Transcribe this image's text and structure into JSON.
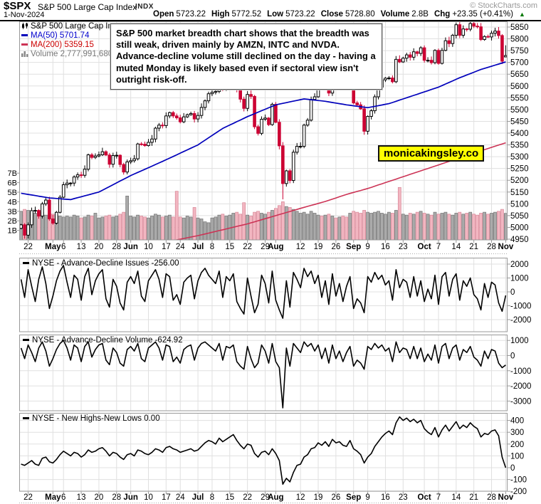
{
  "header": {
    "symbol": "$SPX",
    "title": "S&P 500 Large Cap Index",
    "exchange": "INDX",
    "source": "© StockCharts.com",
    "date": "1-Nov-2024",
    "quote": [
      {
        "label": "Open",
        "value": "5723.22"
      },
      {
        "label": "High",
        "value": "5772.52"
      },
      {
        "label": "Low",
        "value": "5723.22"
      },
      {
        "label": "Close",
        "value": "5728.80"
      },
      {
        "label": "Volume",
        "value": "2.8B"
      },
      {
        "label": "Chg",
        "value": "+23.35 (+0.41%)"
      }
    ],
    "change_direction_icon": "▲",
    "change_color": "#007700"
  },
  "annotation": {
    "text": "S&P 500 market breadth chart shows that the breadth was still weak, driven mainly by AMZN, INTC and NVDA. Advance-decline volume still declined on the day - having a muted Monday is likely based even if sectoral view isn't outright risk-off."
  },
  "brand": {
    "text": "monicakingsley.co",
    "bg": "#ffff00"
  },
  "main_legend": {
    "title": "S&P 500 Large Cap In",
    "ma50": {
      "label": "MA(50)",
      "value": "5701.74",
      "color": "#0000cc"
    },
    "ma200": {
      "label": "MA(200)",
      "value": "5359.15",
      "color": "#cc0000"
    },
    "volume": {
      "label": "Volume",
      "value": "2,777,991,680",
      "color": "#777777"
    }
  },
  "colors": {
    "candle_down": "#cc0033",
    "candle_up_fill": "#ffffff",
    "candle_up_stroke": "#000000",
    "vol_up_fill": "#aaaaaa",
    "vol_up_stroke": "#777777",
    "vol_down_fill": "#f2b6c1",
    "vol_down_stroke": "#d98a9a",
    "ma50_line": "#0000bb",
    "ma200_line": "#cc3355",
    "panel_line": "#000000",
    "grid": "#e0e0e0",
    "border": "#999999"
  },
  "chart_data": {
    "type": "candlestick",
    "title": "S&P 500 Large Cap Index daily with volume and NYSE breadth panels",
    "price_axis": {
      "min": 4950,
      "max": 5850,
      "step": 50
    },
    "volume_axis_labels": [
      "7B",
      "6B",
      "5B",
      "4B",
      "3B",
      "2B",
      "1B"
    ],
    "x_ticks": [
      {
        "label": "22",
        "idx": 2
      },
      {
        "label": "May",
        "idx": 9,
        "bold": true
      },
      {
        "label": "6",
        "idx": 12
      },
      {
        "label": "13",
        "idx": 17
      },
      {
        "label": "20",
        "idx": 22
      },
      {
        "label": "28",
        "idx": 27
      },
      {
        "label": "Jun",
        "idx": 31,
        "bold": true
      },
      {
        "label": "10",
        "idx": 36
      },
      {
        "label": "17",
        "idx": 41
      },
      {
        "label": "24",
        "idx": 45
      },
      {
        "label": "Jul",
        "idx": 50,
        "bold": true
      },
      {
        "label": "8",
        "idx": 54
      },
      {
        "label": "15",
        "idx": 59
      },
      {
        "label": "22",
        "idx": 64
      },
      {
        "label": "29",
        "idx": 69
      },
      {
        "label": "Aug",
        "idx": 72,
        "bold": true
      },
      {
        "label": "12",
        "idx": 79
      },
      {
        "label": "19",
        "idx": 84
      },
      {
        "label": "26",
        "idx": 89
      },
      {
        "label": "Sep",
        "idx": 94,
        "bold": true
      },
      {
        "label": "9",
        "idx": 98
      },
      {
        "label": "16",
        "idx": 103
      },
      {
        "label": "23",
        "idx": 108
      },
      {
        "label": "Oct",
        "idx": 114,
        "bold": true
      },
      {
        "label": "7",
        "idx": 118
      },
      {
        "label": "14",
        "idx": 123
      },
      {
        "label": "21",
        "idx": 128
      },
      {
        "label": "28",
        "idx": 133
      },
      {
        "label": "Nov",
        "idx": 137,
        "bold": true
      }
    ],
    "closes": [
      5011,
      4967,
      5011,
      5071,
      5072,
      5048,
      5100,
      5116,
      5036,
      5018,
      5064,
      5128,
      5181,
      5188,
      5188,
      5214,
      5223,
      5221,
      5247,
      5308,
      5297,
      5303,
      5308,
      5321,
      5307,
      5268,
      5305,
      5306,
      5267,
      5235,
      5278,
      5283,
      5291,
      5354,
      5353,
      5347,
      5361,
      5375,
      5421,
      5434,
      5432,
      5473,
      5487,
      5473,
      5465,
      5448,
      5469,
      5478,
      5483,
      5460,
      5475,
      5509,
      5537,
      5567,
      5573,
      5577,
      5634,
      5585,
      5615,
      5631,
      5667,
      5588,
      5544,
      5505,
      5564,
      5556,
      5427,
      5399,
      5459,
      5464,
      5436,
      5522,
      5446,
      5346,
      5186,
      5240,
      5199,
      5319,
      5344,
      5344,
      5434,
      5455,
      5543,
      5554,
      5608,
      5597,
      5620,
      5570,
      5634,
      5616,
      5625,
      5592,
      5591,
      5648,
      5528,
      5520,
      5503,
      5408,
      5471,
      5495,
      5554,
      5595,
      5626,
      5633,
      5634,
      5618,
      5713,
      5702,
      5718,
      5732,
      5722,
      5745,
      5738,
      5762,
      5709,
      5709,
      5699,
      5751,
      5696,
      5751,
      5792,
      5780,
      5815,
      5860,
      5815,
      5842,
      5841,
      5865,
      5854,
      5851,
      5797,
      5810,
      5808,
      5824,
      5833,
      5814,
      5705,
      5729
    ],
    "volumes_billions": [
      3.0,
      3.2,
      3.1,
      2.9,
      2.8,
      3.0,
      2.9,
      2.6,
      2.8,
      2.7,
      2.6,
      2.5,
      2.4,
      2.5,
      2.4,
      2.6,
      2.5,
      2.3,
      2.4,
      2.6,
      2.5,
      2.8,
      2.3,
      2.4,
      2.5,
      2.6,
      2.4,
      2.5,
      2.7,
      2.9,
      4.6,
      2.5,
      2.4,
      2.6,
      2.5,
      2.4,
      2.3,
      2.5,
      2.7,
      2.6,
      2.4,
      2.5,
      2.6,
      2.4,
      5.1,
      2.4,
      2.3,
      2.5,
      2.4,
      3.4,
      2.3,
      2.2,
      1.9,
      1.8,
      2.3,
      2.4,
      2.6,
      2.7,
      2.5,
      2.6,
      2.8,
      2.9,
      2.7,
      3.9,
      2.6,
      2.5,
      2.9,
      3.0,
      2.8,
      2.7,
      2.9,
      3.1,
      3.3,
      3.6,
      4.0,
      3.5,
      3.4,
      3.2,
      3.0,
      2.8,
      2.9,
      2.7,
      3.0,
      2.8,
      2.6,
      2.5,
      2.6,
      2.7,
      2.5,
      2.3,
      2.4,
      2.5,
      2.4,
      2.8,
      3.0,
      2.9,
      2.8,
      3.1,
      2.9,
      2.8,
      2.9,
      3.0,
      2.8,
      2.7,
      2.9,
      2.8,
      3.1,
      5.5,
      2.7,
      2.6,
      2.8,
      2.7,
      2.9,
      3.0,
      2.8,
      2.7,
      2.6,
      2.9,
      2.7,
      2.8,
      2.9,
      2.7,
      2.6,
      2.8,
      2.9,
      2.7,
      2.8,
      2.9,
      2.7,
      2.6,
      2.8,
      2.9,
      2.7,
      2.8,
      2.9,
      3.0,
      3.2,
      2.78
    ],
    "open_overrides": {
      "137": 5723.22
    },
    "high_overrides": {
      "137": 5772.52
    },
    "low_overrides": {
      "74": 5119,
      "137": 5723.22
    },
    "ma50_points": [
      [
        0,
        5145
      ],
      [
        8,
        5125
      ],
      [
        14,
        5118
      ],
      [
        22,
        5150
      ],
      [
        31,
        5220
      ],
      [
        40,
        5280
      ],
      [
        50,
        5350
      ],
      [
        57,
        5420
      ],
      [
        64,
        5470
      ],
      [
        72,
        5520
      ],
      [
        80,
        5545
      ],
      [
        86,
        5535
      ],
      [
        92,
        5520
      ],
      [
        98,
        5508
      ],
      [
        104,
        5525
      ],
      [
        108,
        5545
      ],
      [
        112,
        5565
      ],
      [
        118,
        5595
      ],
      [
        124,
        5635
      ],
      [
        130,
        5670
      ],
      [
        137,
        5702
      ]
    ],
    "ma200_points": [
      [
        0,
        4815
      ],
      [
        10,
        4845
      ],
      [
        20,
        4875
      ],
      [
        31,
        4905
      ],
      [
        40,
        4935
      ],
      [
        50,
        4965
      ],
      [
        57,
        4990
      ],
      [
        64,
        5015
      ],
      [
        72,
        5050
      ],
      [
        80,
        5085
      ],
      [
        86,
        5110
      ],
      [
        92,
        5140
      ],
      [
        98,
        5165
      ],
      [
        104,
        5195
      ],
      [
        112,
        5235
      ],
      [
        118,
        5265
      ],
      [
        124,
        5295
      ],
      [
        130,
        5325
      ],
      [
        137,
        5359
      ]
    ],
    "panels": [
      {
        "name": "NYSE - Advance-Decline Issues",
        "last": "-256.00",
        "grid": [
          2000,
          1000,
          0,
          -1000,
          -2000
        ],
        "values": [
          900,
          -400,
          1600,
          400,
          -700,
          900,
          1800,
          600,
          -1200,
          -300,
          800,
          1500,
          1900,
          700,
          -400,
          1200,
          900,
          -600,
          1100,
          1700,
          -200,
          800,
          1300,
          1600,
          -500,
          -1100,
          900,
          400,
          -800,
          -1300,
          700,
          1100,
          600,
          1500,
          -300,
          -700,
          800,
          1200,
          1600,
          900,
          -400,
          1300,
          1100,
          -600,
          -200,
          -900,
          700,
          1000,
          1200,
          -500,
          800,
          1400,
          1700,
          1200,
          900,
          600,
          1500,
          -400,
          1100,
          800,
          1300,
          -700,
          -1200,
          -1600,
          1000,
          -300,
          -1500,
          -900,
          1200,
          600,
          -800,
          1500,
          -600,
          -1300,
          -1900,
          800,
          -1100,
          1400,
          900,
          300,
          1700,
          1100,
          1500,
          600,
          1200,
          -400,
          800,
          -900,
          1300,
          -300,
          600,
          -700,
          400,
          1100,
          -1200,
          -500,
          -800,
          -1500,
          1100,
          700,
          1400,
          900,
          1200,
          500,
          800,
          -600,
          1600,
          300,
          900,
          700,
          -400,
          1100,
          -300,
          800,
          -700,
          200,
          -500,
          1200,
          -900,
          1100,
          1400,
          -300,
          900,
          1300,
          -600,
          800,
          400,
          1000,
          -200,
          -500,
          -1300,
          600,
          -400,
          700,
          500,
          -800,
          -1400,
          -256
        ]
      },
      {
        "name": "NYSE - Advance-Decline Volume",
        "last": "-624.92",
        "grid": [
          1000,
          0,
          -1000,
          -2000,
          -3000
        ],
        "values": [
          500,
          -200,
          700,
          200,
          -400,
          500,
          900,
          300,
          -700,
          -200,
          400,
          800,
          1000,
          500,
          -300,
          700,
          500,
          -400,
          600,
          900,
          -100,
          400,
          700,
          800,
          -300,
          -600,
          500,
          200,
          -500,
          -700,
          400,
          600,
          300,
          800,
          -200,
          -400,
          500,
          700,
          900,
          500,
          -300,
          700,
          600,
          -400,
          -100,
          -500,
          400,
          600,
          700,
          -300,
          500,
          800,
          900,
          700,
          500,
          300,
          800,
          -300,
          600,
          500,
          700,
          -400,
          -700,
          -900,
          600,
          -200,
          -800,
          -500,
          700,
          300,
          -500,
          800,
          -400,
          -800,
          -3450,
          500,
          -700,
          800,
          500,
          200,
          900,
          600,
          800,
          300,
          700,
          -200,
          500,
          -500,
          700,
          -200,
          300,
          -400,
          200,
          600,
          -700,
          -300,
          -500,
          -900,
          600,
          400,
          800,
          500,
          700,
          300,
          500,
          -400,
          900,
          200,
          500,
          400,
          -200,
          600,
          -200,
          500,
          -400,
          100,
          -300,
          700,
          -500,
          600,
          800,
          -200,
          500,
          700,
          -300,
          400,
          200,
          600,
          -100,
          -300,
          -700,
          300,
          -200,
          400,
          300,
          -500,
          -800,
          -625
        ]
      },
      {
        "name": "NYSE - New Highs-New Lows",
        "last": "0.00",
        "grid": [
          400,
          300,
          200,
          100,
          0,
          -100,
          -200
        ],
        "values": [
          30,
          20,
          40,
          60,
          30,
          20,
          80,
          90,
          50,
          40,
          70,
          110,
          140,
          120,
          100,
          130,
          120,
          90,
          110,
          150,
          130,
          140,
          160,
          170,
          140,
          100,
          130,
          120,
          90,
          70,
          110,
          120,
          100,
          150,
          140,
          120,
          110,
          130,
          160,
          150,
          130,
          170,
          180,
          160,
          150,
          130,
          140,
          150,
          160,
          140,
          150,
          180,
          210,
          230,
          220,
          200,
          250,
          220,
          240,
          260,
          280,
          230,
          190,
          160,
          200,
          190,
          120,
          90,
          130,
          140,
          110,
          160,
          120,
          60,
          -140,
          -90,
          -120,
          -40,
          20,
          30,
          90,
          110,
          160,
          170,
          210,
          190,
          220,
          180,
          240,
          210,
          220,
          190,
          180,
          230,
          160,
          140,
          110,
          40,
          90,
          120,
          180,
          220,
          260,
          290,
          310,
          280,
          380,
          430,
          400,
          420,
          390,
          410,
          380,
          400,
          330,
          300,
          280,
          340,
          260,
          320,
          360,
          310,
          350,
          390,
          330,
          360,
          340,
          380,
          350,
          330,
          260,
          290,
          280,
          310,
          320,
          270,
          90,
          0
        ]
      }
    ]
  }
}
